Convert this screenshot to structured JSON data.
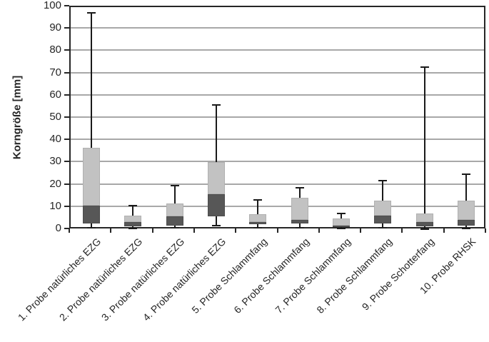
{
  "chart_data": {
    "type": "boxplot",
    "title": "",
    "xlabel": "",
    "ylabel": "Korngröße [mm]",
    "ylim": [
      0,
      100
    ],
    "yticks": [
      0,
      10,
      20,
      30,
      40,
      50,
      60,
      70,
      80,
      90,
      100
    ],
    "grid": "horizontal",
    "legend": "none",
    "categories": [
      "1. Probe natürliches EZG",
      "2. Probe natürliches EZG",
      "3. Probe natürliches EZG",
      "4. Probe natürliches EZG",
      "5. Probe Schlammfang",
      "6. Probe Schlammfang",
      "7. Probe Schlammfang",
      "8. Probe Schlammfang",
      "9. Probe Schotterfang",
      "10. Probe RHSK"
    ],
    "boxes": [
      {
        "min": 1.0,
        "q1": 3.0,
        "median": 11.0,
        "q3": 37.0,
        "max": 97.5
      },
      {
        "min": 0.5,
        "q1": 1.5,
        "median": 3.5,
        "q3": 6.5,
        "max": 11.0
      },
      {
        "min": 1.0,
        "q1": 2.0,
        "median": 6.0,
        "q3": 12.0,
        "max": 20.0
      },
      {
        "min": 2.0,
        "q1": 6.0,
        "median": 16.0,
        "q3": 30.5,
        "max": 56.0
      },
      {
        "min": 1.0,
        "q1": 2.5,
        "median": 3.5,
        "q3": 7.0,
        "max": 13.5
      },
      {
        "min": 1.0,
        "q1": 3.0,
        "median": 4.5,
        "q3": 14.5,
        "max": 19.0
      },
      {
        "min": 0.5,
        "q1": 1.3,
        "median": 2.0,
        "q3": 5.0,
        "max": 7.5
      },
      {
        "min": 1.0,
        "q1": 3.0,
        "median": 6.5,
        "q3": 13.0,
        "max": 22.0
      },
      {
        "min": 0.3,
        "q1": 1.6,
        "median": 3.5,
        "q3": 7.5,
        "max": 73.0
      },
      {
        "min": 0.6,
        "q1": 2.0,
        "median": 4.5,
        "q3": 13.0,
        "max": 25.0
      }
    ],
    "colors": {
      "box_upper_fill": "#c2c2c2",
      "box_upper_border": "#b0b0b0",
      "box_lower_fill": "#575757",
      "box_lower_border": "#4d4d4d",
      "whisker": "#1a1a1a",
      "gridline": "#a8a8a8",
      "axis": "#262626"
    }
  }
}
